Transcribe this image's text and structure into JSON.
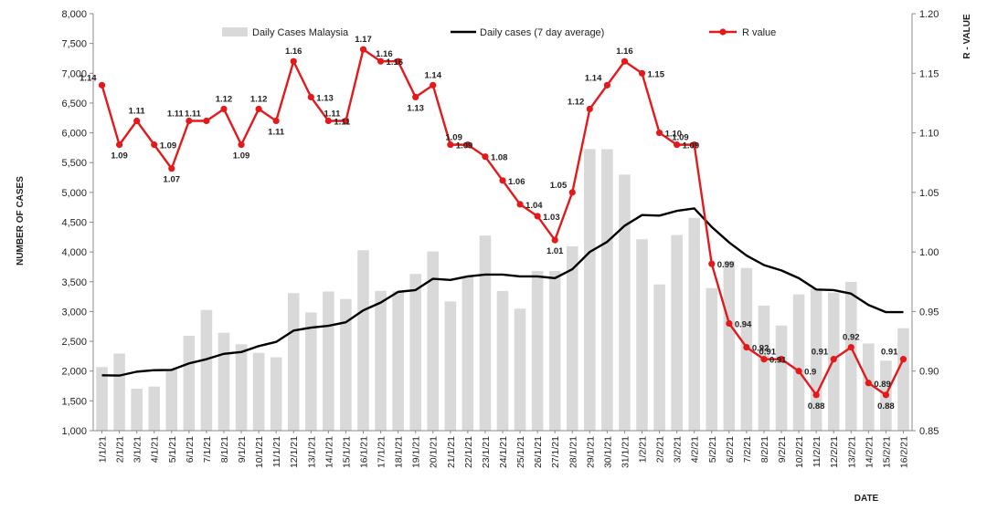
{
  "chart_data": {
    "type": "bar",
    "xlabel": "DATE",
    "ylabel": "NUMBER  OF CASES",
    "y2label": "R - VALUE",
    "ylim": [
      1000,
      8000
    ],
    "yticks": [
      "1,000",
      "1,500",
      "2,000",
      "2,500",
      "3,000",
      "3,500",
      "4,000",
      "4,500",
      "5,000",
      "5,500",
      "6,000",
      "6,500",
      "7,000",
      "7,500",
      "8,000"
    ],
    "y2lim": [
      0.85,
      1.2
    ],
    "y2ticks": [
      "0.85",
      "0.90",
      "0.95",
      "1.00",
      "1.05",
      "1.10",
      "1.15",
      "1.20"
    ],
    "grid": false,
    "legend": "top",
    "categories": [
      "1/1/21",
      "2/1/21",
      "3/1/21",
      "4/1/21",
      "5/1/21",
      "6/1/21",
      "7/1/21",
      "8/1/21",
      "9/1/21",
      "10/1/21",
      "11/1/21",
      "12/1/21",
      "13/1/21",
      "14/1/21",
      "15/1/21",
      "16/1/21",
      "17/1/21",
      "18/1/21",
      "19/1/21",
      "20/1/21",
      "21/1/21",
      "22/1/21",
      "23/1/21",
      "24/1/21",
      "25/1/21",
      "26/1/21",
      "27/1/21",
      "28/1/21",
      "29/1/21",
      "30/1/21",
      "31/1/21",
      "1/2/21",
      "2/2/21",
      "3/2/21",
      "4/2/21",
      "5/2/21",
      "6/2/21",
      "7/2/21",
      "8/2/21",
      "9/2/21",
      "10/2/21",
      "11/2/21",
      "12/2/21",
      "13/2/21",
      "14/2/21",
      "15/2/21",
      "16/2/21"
    ],
    "series": [
      {
        "name": "Daily Cases Malaysia",
        "type": "bar",
        "axis": "left",
        "color": "#d9d9d9",
        "values": [
          2068,
          2295,
          1704,
          1741,
          2027,
          2593,
          3027,
          2643,
          2451,
          2306,
          2232,
          3309,
          2985,
          3337,
          3211,
          4029,
          3346,
          3339,
          3631,
          4008,
          3170,
          3585,
          4275,
          3346,
          3048,
          3680,
          3680,
          4094,
          5728,
          5725,
          5298,
          4214,
          3455,
          4284,
          4571,
          3394,
          3847,
          3731,
          3100,
          2764,
          3288,
          3384,
          3318,
          3499,
          2464,
          2176,
          2720
        ]
      },
      {
        "name": "Daily cases (7 day average)",
        "type": "line",
        "axis": "left",
        "color": "#000000",
        "values": [
          1930,
          1925,
          1990,
          2015,
          2020,
          2130,
          2200,
          2290,
          2320,
          2420,
          2490,
          2680,
          2730,
          2760,
          2820,
          3020,
          3150,
          3330,
          3360,
          3550,
          3530,
          3590,
          3620,
          3620,
          3590,
          3590,
          3560,
          3710,
          4000,
          4170,
          4440,
          4620,
          4610,
          4690,
          4730,
          4420,
          4160,
          3940,
          3780,
          3690,
          3560,
          3370,
          3360,
          3300,
          3110,
          2990,
          2990
        ]
      },
      {
        "name": "R value",
        "type": "line",
        "axis": "right",
        "color": "#e31a1c",
        "values": [
          1.14,
          1.09,
          1.11,
          1.09,
          1.07,
          1.11,
          1.11,
          1.12,
          1.09,
          1.12,
          1.11,
          1.16,
          1.13,
          1.11,
          1.11,
          1.17,
          1.16,
          1.16,
          1.13,
          1.14,
          1.09,
          1.09,
          1.08,
          1.06,
          1.04,
          1.03,
          1.01,
          1.05,
          1.12,
          1.14,
          1.16,
          1.15,
          1.1,
          1.09,
          1.09,
          0.99,
          0.94,
          0.92,
          0.91,
          0.91,
          0.9,
          0.88,
          0.91,
          0.92,
          0.89,
          0.88,
          0.91
        ],
        "labels": [
          "1.14",
          "1.09",
          "1.11",
          "1.09",
          "1.07",
          "1.11",
          "1.11",
          "1.12",
          "1.09",
          "1.12",
          "1.11",
          "1.16",
          "1.13",
          "1.11",
          "1.11",
          "1.17",
          "1.16",
          "1.16",
          "1.13",
          "1.14",
          "1.09",
          "1.09",
          "1.08",
          "1.06",
          "1.04",
          "1.03",
          "1.01",
          "1.05",
          "1.12",
          "1.14",
          "1.16",
          "1.15",
          "1.10",
          "1.09",
          "1.09",
          "0.99",
          "0.94",
          "0.92",
          "0.91",
          "0.91",
          "0.9",
          "0.88",
          "0.91",
          "0.92",
          "0.89",
          "0.88",
          "0.91"
        ]
      }
    ]
  }
}
